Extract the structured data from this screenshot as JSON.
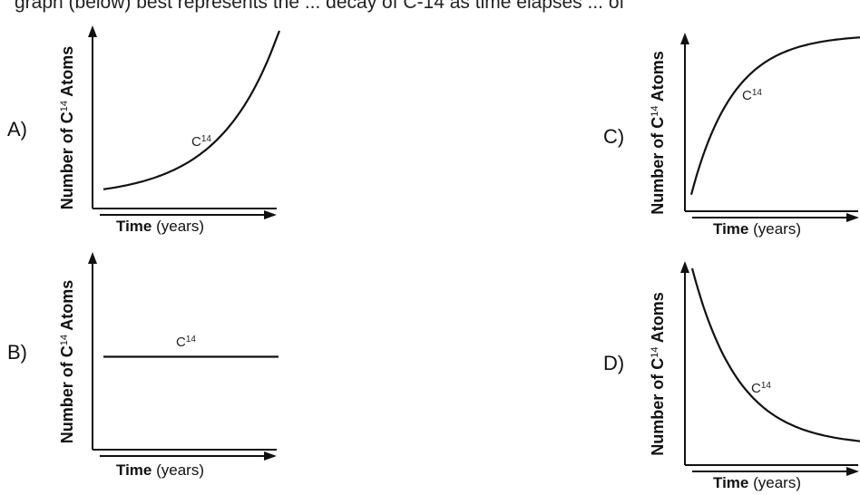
{
  "question_fragment": "graph (below) best represents the ... decay of C-14 as time elapses ... of",
  "chart_data": [
    {
      "type": "line",
      "option": "A)",
      "ylabel": "Number of C14 Atoms",
      "xlabel_bold": "Time",
      "xlabel_rest": " (years)",
      "series_label": "C14",
      "trend": "exponential-increase",
      "x": [
        0,
        0.2,
        0.4,
        0.6,
        0.8,
        1.0
      ],
      "y": [
        0.05,
        0.09,
        0.17,
        0.32,
        0.58,
        1.0
      ]
    },
    {
      "type": "line",
      "option": "B)",
      "ylabel": "Number of C14 Atoms",
      "xlabel_bold": "Time",
      "xlabel_rest": " (years)",
      "series_label": "C14",
      "trend": "constant",
      "x": [
        0,
        1.0
      ],
      "y": [
        0.5,
        0.5
      ]
    },
    {
      "type": "line",
      "option": "C)",
      "ylabel": "Number of C14 Atoms",
      "xlabel_bold": "Time",
      "xlabel_rest": " (years)",
      "series_label": "C14",
      "trend": "saturating-increase",
      "x": [
        0,
        0.2,
        0.4,
        0.6,
        0.8,
        1.0
      ],
      "y": [
        0.05,
        0.55,
        0.78,
        0.9,
        0.96,
        0.99
      ]
    },
    {
      "type": "line",
      "option": "D)",
      "ylabel": "Number of C14 Atoms",
      "xlabel_bold": "Time",
      "xlabel_rest": " (years)",
      "series_label": "C14",
      "trend": "exponential-decay",
      "x": [
        0,
        0.2,
        0.4,
        0.6,
        0.8,
        1.0
      ],
      "y": [
        1.0,
        0.5,
        0.27,
        0.15,
        0.09,
        0.06
      ]
    }
  ]
}
